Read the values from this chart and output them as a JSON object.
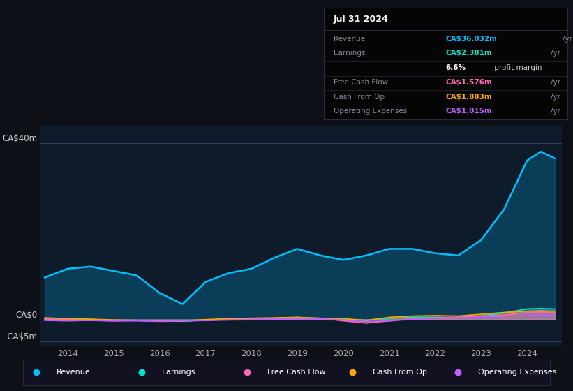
{
  "bg_color": "#0d1117",
  "plot_bg_color": "#0d1b2a",
  "ylabel_top": "CA$40m",
  "ylabel_zero": "CA$0",
  "ylabel_neg": "-CA$5m",
  "ylim": [
    -6,
    44
  ],
  "legend": [
    {
      "label": "Revenue",
      "color": "#00bfff"
    },
    {
      "label": "Earnings",
      "color": "#00e5cc"
    },
    {
      "label": "Free Cash Flow",
      "color": "#ff69b4"
    },
    {
      "label": "Cash From Op",
      "color": "#ffa500"
    },
    {
      "label": "Operating Expenses",
      "color": "#bf5fff"
    }
  ],
  "years": [
    2013.5,
    2014,
    2014.5,
    2015,
    2015.5,
    2016,
    2016.5,
    2017,
    2017.5,
    2018,
    2018.5,
    2019,
    2019.5,
    2020,
    2020.5,
    2021,
    2021.5,
    2022,
    2022.5,
    2023,
    2023.5,
    2024,
    2024.3,
    2024.6
  ],
  "revenue": [
    9.5,
    11.5,
    12.0,
    11.0,
    10.0,
    6.0,
    3.5,
    8.5,
    10.5,
    11.5,
    14.0,
    16.0,
    14.5,
    13.5,
    14.5,
    16.0,
    16.0,
    15.0,
    14.5,
    18.0,
    25.0,
    36.0,
    38.0,
    36.5
  ],
  "earnings": [
    0.3,
    0.2,
    -0.1,
    -0.2,
    -0.2,
    -0.3,
    -0.4,
    -0.1,
    0.1,
    0.2,
    0.3,
    0.5,
    0.2,
    0.1,
    -0.2,
    0.3,
    0.5,
    0.5,
    0.4,
    0.8,
    1.5,
    2.4,
    2.5,
    2.4
  ],
  "free_cash_flow": [
    0.1,
    0.0,
    -0.2,
    -0.3,
    -0.2,
    -0.4,
    -0.3,
    -0.2,
    0.0,
    0.1,
    0.2,
    0.4,
    0.3,
    -0.3,
    -0.8,
    -0.3,
    0.2,
    0.4,
    0.5,
    0.8,
    1.0,
    1.6,
    1.7,
    1.6
  ],
  "cash_from_op": [
    0.4,
    0.2,
    0.1,
    -0.1,
    -0.2,
    -0.2,
    -0.3,
    0.0,
    0.2,
    0.3,
    0.4,
    0.5,
    0.3,
    0.2,
    -0.2,
    0.5,
    0.8,
    0.9,
    0.8,
    1.2,
    1.6,
    1.9,
    2.0,
    1.9
  ],
  "operating_expenses": [
    -0.2,
    -0.3,
    -0.2,
    -0.3,
    -0.3,
    -0.4,
    -0.3,
    -0.2,
    -0.1,
    0.0,
    0.1,
    0.2,
    0.1,
    -0.1,
    -0.5,
    -0.3,
    0.1,
    0.3,
    0.4,
    0.6,
    0.8,
    1.0,
    1.1,
    1.0
  ],
  "box_date": "Jul 31 2024",
  "box_rows": [
    {
      "label": "Revenue",
      "value": "CA$36.032m",
      "unit": "/yr",
      "vcolor": "#00bfff",
      "ucolor": "#888899",
      "bold_value": true,
      "bold_unit": false
    },
    {
      "label": "Earnings",
      "value": "CA$2.381m",
      "unit": "/yr",
      "vcolor": "#00e5cc",
      "ucolor": "#888899",
      "bold_value": true,
      "bold_unit": false
    },
    {
      "label": "",
      "value": "6.6%",
      "unit": " profit margin",
      "vcolor": "#ffffff",
      "ucolor": "#cccccc",
      "bold_value": true,
      "bold_unit": false
    },
    {
      "label": "Free Cash Flow",
      "value": "CA$1.576m",
      "unit": "/yr",
      "vcolor": "#ff69b4",
      "ucolor": "#888899",
      "bold_value": true,
      "bold_unit": false
    },
    {
      "label": "Cash From Op",
      "value": "CA$1.883m",
      "unit": "/yr",
      "vcolor": "#ffa500",
      "ucolor": "#888899",
      "bold_value": true,
      "bold_unit": false
    },
    {
      "label": "Operating Expenses",
      "value": "CA$1.015m",
      "unit": "/yr",
      "vcolor": "#bf5fff",
      "ucolor": "#888899",
      "bold_value": true,
      "bold_unit": false
    }
  ]
}
